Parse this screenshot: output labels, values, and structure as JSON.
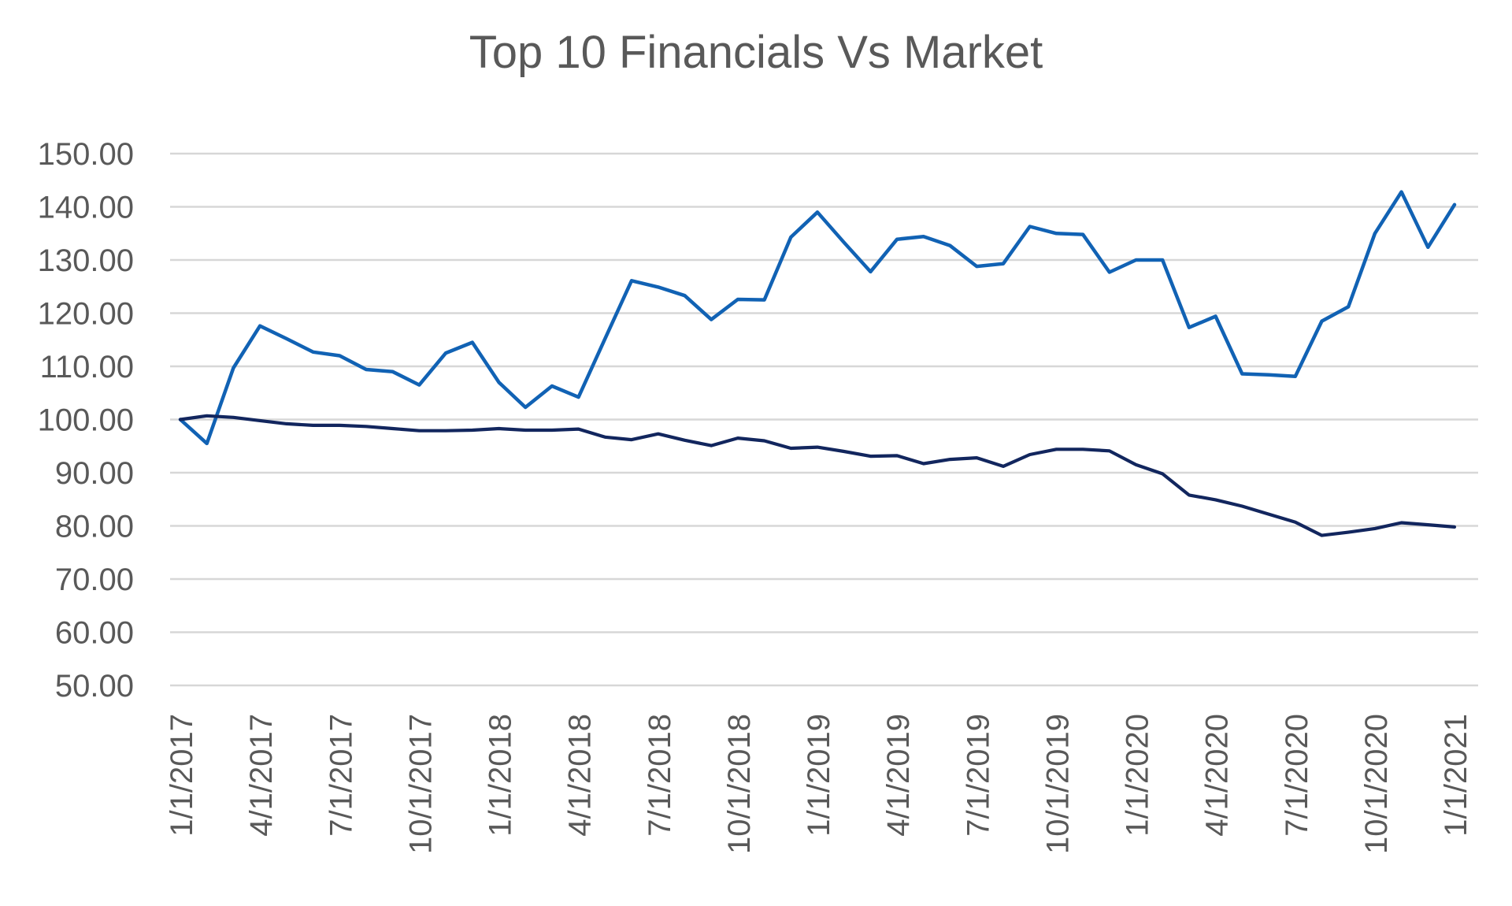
{
  "title": "Top 10 Financials Vs Market",
  "colors": {
    "series1": "#1162B4",
    "series2": "#12265E",
    "gridline": "#D7D7D7",
    "text": "#595959",
    "background": "#FFFFFF"
  },
  "chart_data": {
    "type": "line",
    "title": "Top 10 Financials Vs Market",
    "xlabel": "",
    "ylabel": "",
    "ylim": [
      50,
      150
    ],
    "ytick_step": 10,
    "grid": true,
    "legend": "none",
    "y_tick_labels": [
      "150.00",
      "140.00",
      "130.00",
      "120.00",
      "110.00",
      "100.00",
      "90.00",
      "80.00",
      "70.00",
      "60.00",
      "50.00"
    ],
    "x_tick_labels": [
      "1/1/2017",
      "4/1/2017",
      "7/1/2017",
      "10/1/2017",
      "1/1/2018",
      "4/1/2018",
      "7/1/2018",
      "10/1/2018",
      "1/1/2019",
      "4/1/2019",
      "7/1/2019",
      "10/1/2019",
      "1/1/2020",
      "4/1/2020",
      "7/1/2020",
      "10/1/2020",
      "1/1/2021"
    ],
    "x": [
      "1/1/2017",
      "2/1/2017",
      "3/1/2017",
      "4/1/2017",
      "5/1/2017",
      "6/1/2017",
      "7/1/2017",
      "8/1/2017",
      "9/1/2017",
      "10/1/2017",
      "11/1/2017",
      "12/1/2017",
      "1/1/2018",
      "2/1/2018",
      "3/1/2018",
      "4/1/2018",
      "5/1/2018",
      "6/1/2018",
      "7/1/2018",
      "8/1/2018",
      "9/1/2018",
      "10/1/2018",
      "11/1/2018",
      "12/1/2018",
      "1/1/2019",
      "2/1/2019",
      "3/1/2019",
      "4/1/2019",
      "5/1/2019",
      "6/1/2019",
      "7/1/2019",
      "8/1/2019",
      "9/1/2019",
      "10/1/2019",
      "11/1/2019",
      "12/1/2019",
      "1/1/2020",
      "2/1/2020",
      "3/1/2020",
      "4/1/2020",
      "5/1/2020",
      "6/1/2020",
      "7/1/2020",
      "8/1/2020",
      "9/1/2020",
      "10/1/2020",
      "11/1/2020",
      "12/1/2020",
      "1/1/2021"
    ],
    "series": [
      {
        "id": "series-1",
        "color": "#1162B4",
        "stroke_width": 4.5,
        "values": [
          100.0,
          95.5,
          109.7,
          117.6,
          115.2,
          112.7,
          112.0,
          109.4,
          109.0,
          106.5,
          112.5,
          114.5,
          107.0,
          102.3,
          106.3,
          104.2,
          115.2,
          126.1,
          124.9,
          123.3,
          118.8,
          122.6,
          122.5,
          134.3,
          139.0,
          133.3,
          127.8,
          133.9,
          134.4,
          132.7,
          128.8,
          129.3,
          136.3,
          135.0,
          134.8,
          127.7,
          130.0,
          130.0,
          117.3,
          119.4,
          108.6,
          108.4,
          108.1,
          118.5,
          121.2,
          135.0,
          142.8,
          132.4,
          140.4
        ]
      },
      {
        "id": "series-2",
        "color": "#12265E",
        "stroke_width": 4.2,
        "values": [
          100.0,
          100.7,
          100.4,
          99.8,
          99.2,
          98.9,
          98.9,
          98.7,
          98.3,
          97.9,
          97.9,
          98.0,
          98.3,
          98.0,
          98.0,
          98.2,
          96.7,
          96.2,
          97.3,
          96.1,
          95.1,
          96.5,
          96.0,
          94.6,
          94.8,
          94.0,
          93.1,
          93.2,
          91.7,
          92.5,
          92.8,
          91.2,
          93.4,
          94.4,
          94.4,
          94.1,
          91.5,
          89.8,
          85.8,
          84.9,
          83.7,
          82.2,
          80.7,
          78.2,
          78.8,
          79.5,
          80.6,
          80.2,
          79.8
        ]
      }
    ]
  }
}
